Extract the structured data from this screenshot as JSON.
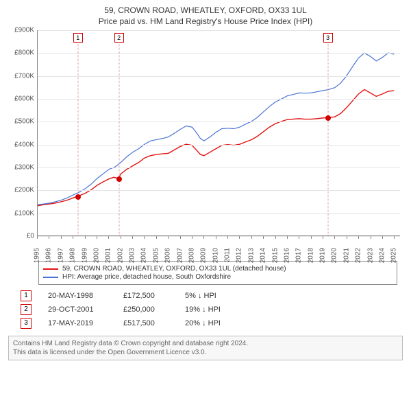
{
  "title": {
    "main": "59, CROWN ROAD, WHEATLEY, OXFORD, OX33 1UL",
    "sub": "Price paid vs. HM Land Registry's House Price Index (HPI)",
    "fontsize": 12,
    "color": "#333333"
  },
  "chart": {
    "type": "line",
    "background_color": "#ffffff",
    "grid_color": "#e4e4e4",
    "axis_color": "#888888",
    "label_color": "#555555",
    "label_fontsize": 10,
    "xlim": [
      1995,
      2025.5
    ],
    "ylim": [
      0,
      900
    ],
    "y_unit_prefix": "£",
    "y_unit_suffix": "K",
    "yticks": [
      0,
      100,
      200,
      300,
      400,
      500,
      600,
      700,
      800,
      900
    ],
    "xticks": [
      1995,
      1996,
      1997,
      1998,
      1999,
      2000,
      2001,
      2002,
      2003,
      2004,
      2005,
      2006,
      2007,
      2008,
      2009,
      2010,
      2011,
      2012,
      2013,
      2014,
      2015,
      2016,
      2017,
      2018,
      2019,
      2020,
      2021,
      2022,
      2023,
      2024,
      2025
    ],
    "series": [
      {
        "id": "price_paid",
        "label": "59, CROWN ROAD, WHEATLEY, OXFORD, OX33 1UL (detached house)",
        "color": "#e31212",
        "line_width": 1.4,
        "data": [
          [
            1995,
            130
          ],
          [
            1995.5,
            135
          ],
          [
            1996,
            138
          ],
          [
            1996.5,
            142
          ],
          [
            1997,
            148
          ],
          [
            1997.5,
            155
          ],
          [
            1998,
            165
          ],
          [
            1998.4,
            172
          ],
          [
            1999,
            185
          ],
          [
            1999.5,
            200
          ],
          [
            2000,
            220
          ],
          [
            2000.5,
            235
          ],
          [
            2001,
            248
          ],
          [
            2001.4,
            255
          ],
          [
            2001.8,
            250
          ],
          [
            2002,
            270
          ],
          [
            2002.5,
            290
          ],
          [
            2003,
            305
          ],
          [
            2003.5,
            320
          ],
          [
            2004,
            340
          ],
          [
            2004.5,
            350
          ],
          [
            2005,
            355
          ],
          [
            2005.5,
            358
          ],
          [
            2006,
            360
          ],
          [
            2006.5,
            375
          ],
          [
            2007,
            390
          ],
          [
            2007.5,
            400
          ],
          [
            2008,
            395
          ],
          [
            2008.3,
            378
          ],
          [
            2008.7,
            355
          ],
          [
            2009,
            350
          ],
          [
            2009.5,
            365
          ],
          [
            2010,
            380
          ],
          [
            2010.5,
            395
          ],
          [
            2011,
            398
          ],
          [
            2011.5,
            395
          ],
          [
            2012,
            400
          ],
          [
            2012.5,
            410
          ],
          [
            2013,
            420
          ],
          [
            2013.5,
            435
          ],
          [
            2014,
            455
          ],
          [
            2014.5,
            475
          ],
          [
            2015,
            490
          ],
          [
            2015.5,
            500
          ],
          [
            2016,
            508
          ],
          [
            2016.5,
            510
          ],
          [
            2017,
            512
          ],
          [
            2017.5,
            510
          ],
          [
            2018,
            510
          ],
          [
            2018.5,
            512
          ],
          [
            2019,
            515
          ],
          [
            2019.4,
            517
          ],
          [
            2020,
            520
          ],
          [
            2020.5,
            535
          ],
          [
            2021,
            560
          ],
          [
            2021.5,
            590
          ],
          [
            2022,
            620
          ],
          [
            2022.5,
            640
          ],
          [
            2023,
            625
          ],
          [
            2023.5,
            610
          ],
          [
            2024,
            620
          ],
          [
            2024.5,
            632
          ],
          [
            2025,
            635
          ]
        ]
      },
      {
        "id": "hpi",
        "label": "HPI: Average price, detached house, South Oxfordshire",
        "color": "#4a74d4",
        "line_width": 1.2,
        "data": [
          [
            1995,
            135
          ],
          [
            1995.5,
            138
          ],
          [
            1996,
            142
          ],
          [
            1996.5,
            148
          ],
          [
            1997,
            155
          ],
          [
            1997.5,
            165
          ],
          [
            1998,
            178
          ],
          [
            1998.5,
            190
          ],
          [
            1999,
            205
          ],
          [
            1999.5,
            225
          ],
          [
            2000,
            250
          ],
          [
            2000.5,
            270
          ],
          [
            2001,
            290
          ],
          [
            2001.5,
            300
          ],
          [
            2002,
            320
          ],
          [
            2002.5,
            345
          ],
          [
            2003,
            365
          ],
          [
            2003.5,
            380
          ],
          [
            2004,
            400
          ],
          [
            2004.5,
            415
          ],
          [
            2005,
            420
          ],
          [
            2005.5,
            425
          ],
          [
            2006,
            432
          ],
          [
            2006.5,
            448
          ],
          [
            2007,
            465
          ],
          [
            2007.5,
            480
          ],
          [
            2008,
            475
          ],
          [
            2008.3,
            455
          ],
          [
            2008.7,
            425
          ],
          [
            2009,
            415
          ],
          [
            2009.5,
            432
          ],
          [
            2010,
            452
          ],
          [
            2010.5,
            468
          ],
          [
            2011,
            470
          ],
          [
            2011.5,
            468
          ],
          [
            2012,
            475
          ],
          [
            2012.5,
            488
          ],
          [
            2013,
            500
          ],
          [
            2013.5,
            518
          ],
          [
            2014,
            542
          ],
          [
            2014.5,
            565
          ],
          [
            2015,
            585
          ],
          [
            2015.5,
            598
          ],
          [
            2016,
            612
          ],
          [
            2016.5,
            618
          ],
          [
            2017,
            625
          ],
          [
            2017.5,
            624
          ],
          [
            2018,
            625
          ],
          [
            2018.5,
            630
          ],
          [
            2019,
            635
          ],
          [
            2019.5,
            640
          ],
          [
            2020,
            648
          ],
          [
            2020.5,
            668
          ],
          [
            2021,
            700
          ],
          [
            2021.5,
            740
          ],
          [
            2022,
            778
          ],
          [
            2022.5,
            800
          ],
          [
            2023,
            785
          ],
          [
            2023.5,
            765
          ],
          [
            2024,
            780
          ],
          [
            2024.5,
            800
          ],
          [
            2025,
            795
          ]
        ]
      }
    ],
    "markers": [
      {
        "n": "1",
        "x": 1998.38,
        "y": 172,
        "line_color": "#d99090",
        "dot_color": "#d00000"
      },
      {
        "n": "2",
        "x": 2001.83,
        "y": 250,
        "line_color": "#d99090",
        "dot_color": "#d00000"
      },
      {
        "n": "3",
        "x": 2019.38,
        "y": 517,
        "line_color": "#d99090",
        "dot_color": "#d00000"
      }
    ]
  },
  "legend": {
    "border_color": "#888888",
    "fontsize": 10,
    "items": [
      {
        "color": "#e31212",
        "label": "59, CROWN ROAD, WHEATLEY, OXFORD, OX33 1UL (detached house)"
      },
      {
        "color": "#4a74d4",
        "label": "HPI: Average price, detached house, South Oxfordshire"
      }
    ]
  },
  "marker_table": {
    "rows": [
      {
        "n": "1",
        "date": "20-MAY-1998",
        "price": "£172,500",
        "delta": "5% ↓ HPI"
      },
      {
        "n": "2",
        "date": "29-OCT-2001",
        "price": "£250,000",
        "delta": "19% ↓ HPI"
      },
      {
        "n": "3",
        "date": "17-MAY-2019",
        "price": "£517,500",
        "delta": "20% ↓ HPI"
      }
    ],
    "box_border_color": "#d00000",
    "fontsize": 11
  },
  "footer": {
    "line1": "Contains HM Land Registry data © Crown copyright and database right 2024.",
    "line2": "This data is licensed under the Open Government Licence v3.0.",
    "border_color": "#bbbbbb",
    "background_color": "#f7f7f7",
    "color": "#666666",
    "fontsize": 10
  }
}
